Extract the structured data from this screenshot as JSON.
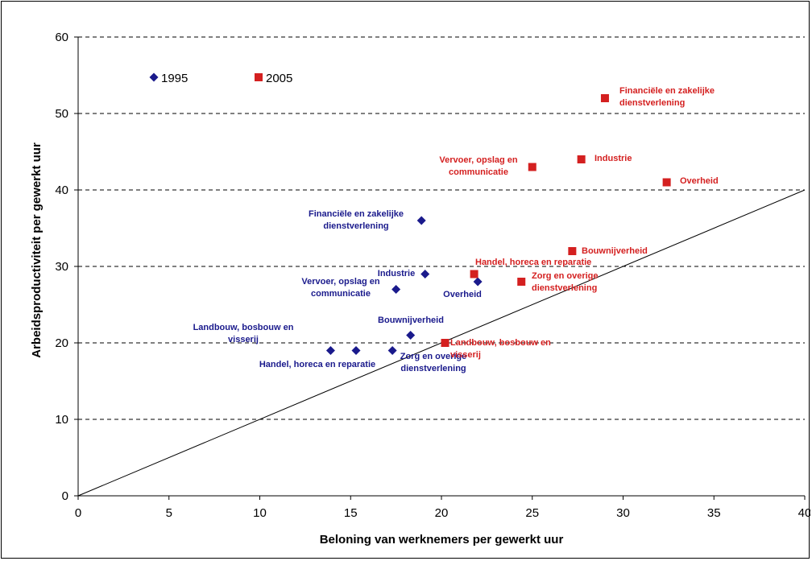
{
  "chart_data": {
    "type": "scatter",
    "xlabel": "Beloning van werknemers per gewerkt uur",
    "ylabel": "Arbeidsproductiviteit per gewerkt uur",
    "xlim": [
      0,
      40
    ],
    "ylim": [
      0,
      60
    ],
    "x_ticks": [
      "0",
      "5",
      "10",
      "15",
      "20",
      "25",
      "30",
      "35",
      "40"
    ],
    "y_ticks": [
      "0",
      "10",
      "20",
      "30",
      "40",
      "50",
      "60"
    ],
    "grid": "horizontal dashed",
    "legend_position": "top-left",
    "reference_line": {
      "from": [
        0,
        0
      ],
      "to": [
        40,
        40
      ]
    },
    "series": [
      {
        "name": "1995",
        "marker": "diamond",
        "color": "#1a1a8c",
        "points": [
          {
            "x": 13.9,
            "y": 19,
            "label": ""
          },
          {
            "x": 15.3,
            "y": 19,
            "label": ""
          },
          {
            "x": 17.3,
            "y": 19,
            "label": ""
          },
          {
            "x": 18.3,
            "y": 21,
            "label": "Bouwnijverheid"
          },
          {
            "x": 17.5,
            "y": 27,
            "label": "Vervoer, opslag en communicatie"
          },
          {
            "x": 19.1,
            "y": 29,
            "label": "Industrie"
          },
          {
            "x": 22.0,
            "y": 28,
            "label": "Overheid"
          },
          {
            "x": 18.9,
            "y": 36,
            "label": "Financiële en zakelijke dienstverlening"
          }
        ]
      },
      {
        "name": "2005",
        "marker": "square",
        "color": "#d42020",
        "points": [
          {
            "x": 20.2,
            "y": 20,
            "label": "Landbouw, bosbouw en visserij"
          },
          {
            "x": 21.8,
            "y": 29,
            "label": "Handel, horeca en reparatie"
          },
          {
            "x": 24.4,
            "y": 28,
            "label": "Zorg en overige dienstverlening"
          },
          {
            "x": 27.2,
            "y": 32,
            "label": "Bouwnijverheid"
          },
          {
            "x": 25.0,
            "y": 43,
            "label": "Vervoer, opslag en communicatie"
          },
          {
            "x": 27.7,
            "y": 44,
            "label": "Industrie"
          },
          {
            "x": 32.4,
            "y": 41,
            "label": "Overheid"
          },
          {
            "x": 29.0,
            "y": 52,
            "label": "Financiële en zakelijke dienstverlening"
          }
        ]
      }
    ],
    "extra_labels_1995": [
      "Landbouw, bosbouw en visserij",
      "Handel, horeca en reparatie",
      "Zorg en overige dienstverlening"
    ]
  }
}
